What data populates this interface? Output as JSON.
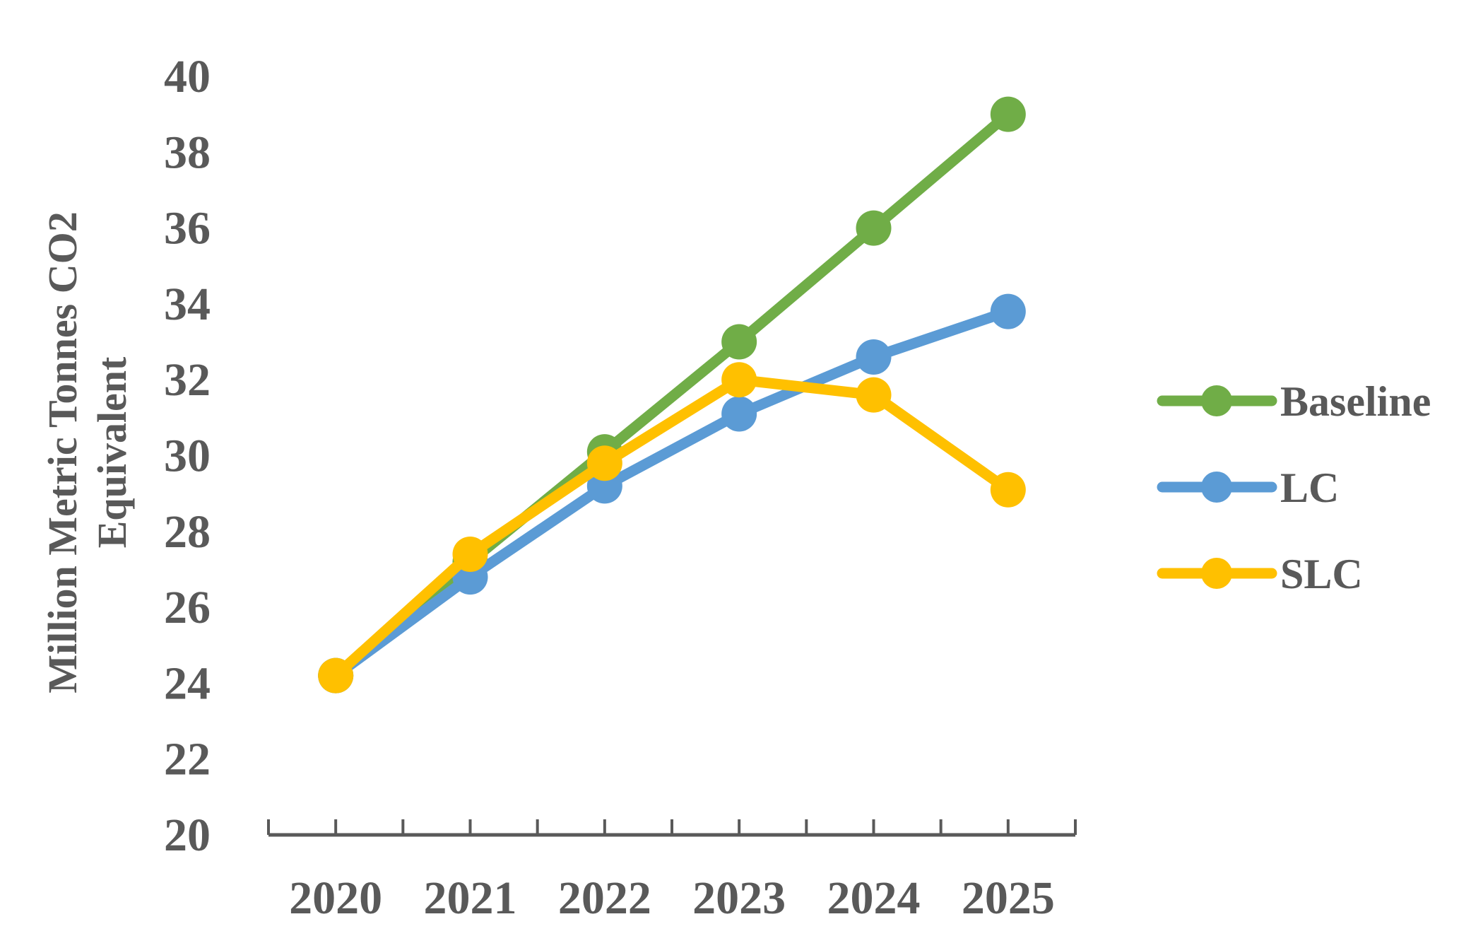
{
  "chart_data": {
    "type": "line",
    "title": "",
    "xlabel": "",
    "ylabel_lines": [
      "Million Metric Tonnes CO2",
      "Equivalent"
    ],
    "categories": [
      "2020",
      "2021",
      "2022",
      "2023",
      "2024",
      "2025"
    ],
    "ylim": [
      20,
      40
    ],
    "yticks": [
      20,
      22,
      24,
      26,
      28,
      30,
      32,
      34,
      36,
      38,
      40
    ],
    "grid": false,
    "legend_position": "right",
    "series": [
      {
        "name": "Baseline",
        "color": "#70AD47",
        "values": [
          24.2,
          27.2,
          30.1,
          33.0,
          36.0,
          39.0
        ]
      },
      {
        "name": "LC",
        "color": "#5B9BD5",
        "values": [
          24.2,
          26.8,
          29.2,
          31.1,
          32.6,
          33.8
        ]
      },
      {
        "name": "SLC",
        "color": "#FFC000",
        "values": [
          24.2,
          27.4,
          29.8,
          32.0,
          31.6,
          29.1
        ]
      }
    ]
  }
}
